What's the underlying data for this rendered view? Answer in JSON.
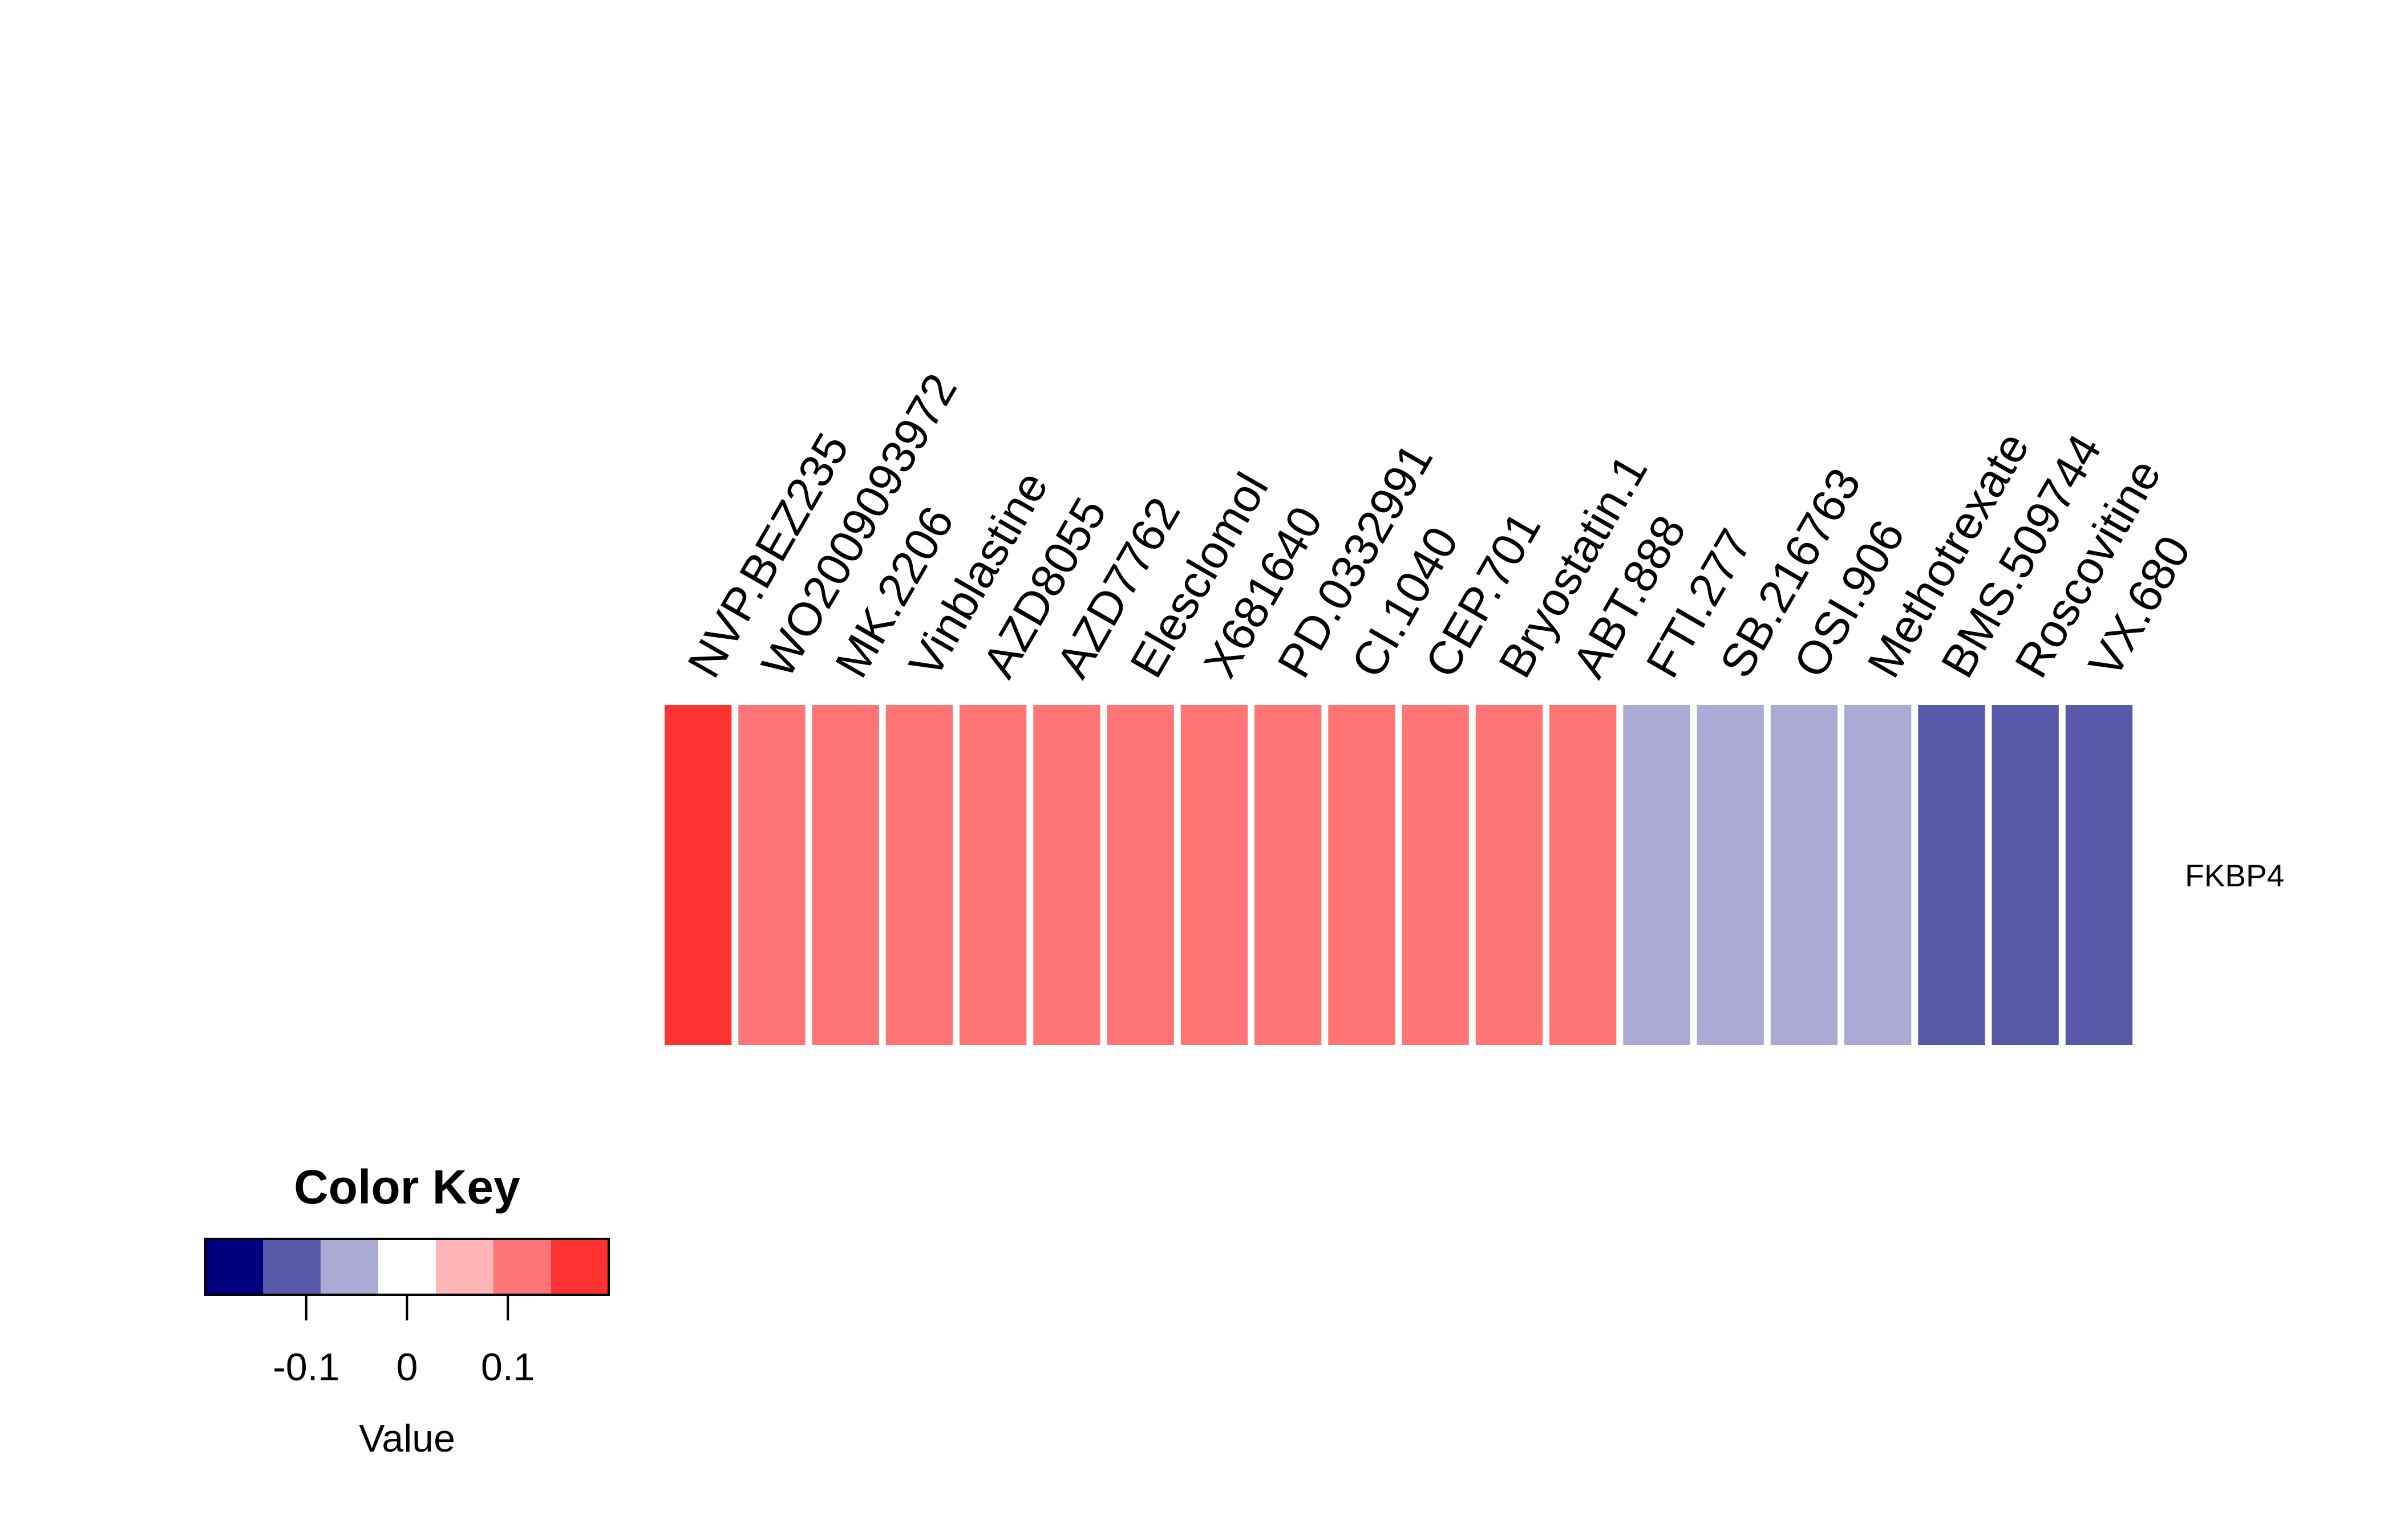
{
  "chart_data": {
    "type": "heatmap",
    "rows": [
      "FKBP4"
    ],
    "columns": [
      "NVP.BEZ235",
      "WO2009093972",
      "MK.2206",
      "Vinblastine",
      "AZD8055",
      "AZD7762",
      "Elesclomol",
      "X681640",
      "PD.0332991",
      "CI.1040",
      "CEP.701",
      "Bryostatin.1",
      "ABT.888",
      "FTI.277",
      "SB.216763",
      "OSI.906",
      "Methotrexate",
      "BMS.509744",
      "Roscovitine",
      "VX.680"
    ],
    "values": [
      [
        0.17,
        0.12,
        0.12,
        0.12,
        0.12,
        0.12,
        0.12,
        0.12,
        0.12,
        0.12,
        0.12,
        0.12,
        0.12,
        -0.07,
        -0.07,
        -0.07,
        -0.07,
        -0.12,
        -0.12,
        -0.12
      ]
    ],
    "color_key": {
      "title": "Color Key",
      "xlabel": "Value",
      "range": [
        -0.2,
        0.2
      ],
      "breaks": [
        -0.2,
        -0.1428571,
        -0.0857143,
        -0.0285714,
        0.0285714,
        0.0857143,
        0.1428571,
        0.2
      ],
      "colors": [
        "#00007F",
        "#5959A9",
        "#AAAAD4",
        "#FFFFFF",
        "#FFB6B6",
        "#FF7474",
        "#FF3232"
      ],
      "ticks": [
        -0.1,
        0,
        0.1
      ],
      "tick_labels": [
        "-0.1",
        "0",
        "0.1"
      ]
    },
    "legend_placement": "bottom-left"
  }
}
